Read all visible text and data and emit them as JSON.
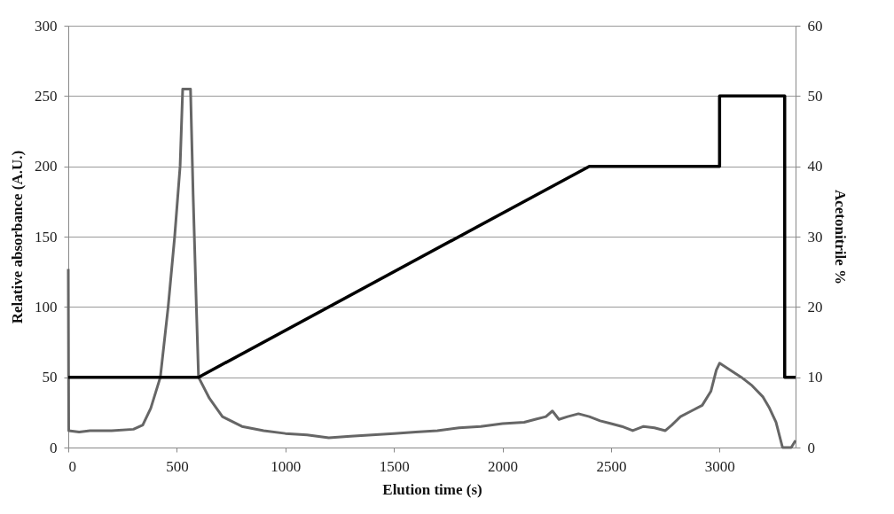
{
  "chart_data": {
    "type": "line",
    "xlabel": "Elution time (s)",
    "ylabel": "Relative absorbance (A.U.)",
    "y2label": "Acetonitrile %",
    "xlim": [
      0,
      3350
    ],
    "xticks": [
      0,
      500,
      1000,
      1500,
      2000,
      2500,
      3000
    ],
    "ylim": [
      0,
      300
    ],
    "yticks": [
      0,
      50,
      100,
      150,
      200,
      250,
      300
    ],
    "y2lim": [
      0,
      60
    ],
    "y2ticks": [
      0,
      10,
      20,
      30,
      40,
      50,
      60
    ],
    "grid": "y",
    "marker": "none",
    "line_style": "solid",
    "series": [
      {
        "color": "#666666",
        "x": [
          0,
          2,
          50,
          100,
          200,
          300,
          343,
          380,
          424,
          460,
          490,
          515,
          527,
          563,
          575,
          590,
          600,
          650,
          710,
          800,
          900,
          1000,
          1100,
          1200,
          1300,
          1400,
          1500,
          1600,
          1700,
          1800,
          1900,
          2000,
          2100,
          2150,
          2200,
          2230,
          2260,
          2300,
          2350,
          2400,
          2450,
          2500,
          2550,
          2600,
          2650,
          2700,
          2750,
          2780,
          2820,
          2870,
          2920,
          2960,
          2985,
          3000,
          3050,
          3100,
          3150,
          3200,
          3230,
          3260,
          3290,
          3330,
          3350
        ],
        "values": [
          127,
          12,
          11,
          12,
          12,
          13,
          16,
          28,
          50,
          100,
          150,
          200,
          255,
          255,
          180,
          100,
          50,
          35,
          22,
          15,
          12,
          10,
          9,
          7,
          8,
          9,
          10,
          11,
          12,
          14,
          15,
          17,
          18,
          20,
          22,
          26,
          20,
          22,
          24,
          22,
          19,
          17,
          15,
          12,
          15,
          14,
          12,
          16,
          22,
          26,
          30,
          40,
          55,
          60,
          55,
          50,
          44,
          36,
          28,
          18,
          0,
          0,
          5
        ]
      },
      {
        "color": "#000000",
        "axis": "y2",
        "x": [
          0,
          600,
          2400,
          3000,
          3000,
          3300,
          3300,
          3350
        ],
        "values": [
          10,
          10,
          40,
          40,
          50,
          50,
          10,
          10
        ]
      }
    ]
  }
}
